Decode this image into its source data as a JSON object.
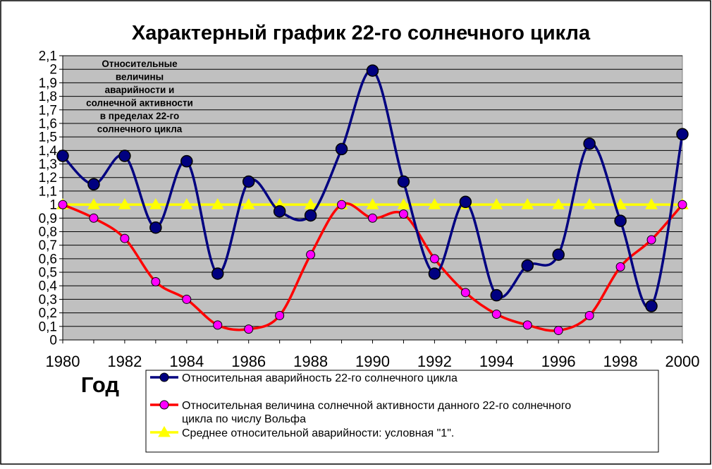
{
  "chart_data": {
    "type": "line",
    "title": "Характерный  график 22-го  солнечного  цикла",
    "xlabel": "Год",
    "ylabel": "",
    "annotation": [
      "Относительные",
      "величины",
      "аварийности и",
      "солнечной активности",
      "в пределах 22-го",
      "солнечного цикла"
    ],
    "x": [
      1980,
      1981,
      1982,
      1983,
      1984,
      1985,
      1986,
      1987,
      1988,
      1989,
      1990,
      1991,
      1992,
      1993,
      1994,
      1995,
      1996,
      1997,
      1998,
      1999,
      2000
    ],
    "x_ticks": [
      "1980",
      "1982",
      "1984",
      "1986",
      "1988",
      "1990",
      "1992",
      "1994",
      "1996",
      "1998",
      "2000"
    ],
    "y_ticks": [
      "0",
      "0,1",
      "0,2",
      "0,3",
      "0,4",
      "0,5",
      "0,6",
      "0,7",
      "0,8",
      "0,9",
      "1",
      "1,1",
      "1,2",
      "1,3",
      "1,4",
      "1,5",
      "1,6",
      "1,7",
      "1,8",
      "1,9",
      "2",
      "2,1"
    ],
    "xlim": [
      1980,
      2000
    ],
    "ylim": [
      0,
      2.1
    ],
    "grid": true,
    "plot_background": "#c0c0c0",
    "legend_position": "bottom",
    "series": [
      {
        "name": "Относительная  аварийность 22-го  солнечного цикла",
        "color": "#000080",
        "marker": "circle",
        "marker_fill": "#000080",
        "values": [
          1.36,
          1.15,
          1.36,
          0.83,
          1.32,
          0.49,
          1.17,
          0.95,
          0.92,
          1.41,
          1.99,
          1.17,
          0.49,
          1.02,
          0.33,
          0.55,
          0.63,
          1.45,
          0.88,
          0.25,
          1.52
        ]
      },
      {
        "name": "Относительная  величина  солнечной активности  данного 22-го солнечного цикла  по  числу  Вольфа",
        "color": "#ff0000",
        "marker": "circle",
        "marker_fill": "#ff00ff",
        "values": [
          1.0,
          0.9,
          0.75,
          0.43,
          0.3,
          0.11,
          0.08,
          0.18,
          0.63,
          1.0,
          0.9,
          0.93,
          0.6,
          0.35,
          0.19,
          0.11,
          0.07,
          0.18,
          0.54,
          0.74,
          1.0
        ]
      },
      {
        "name": "Среднее относительной  аварийности:  условная  \"1\".",
        "color": "#ffff00",
        "marker": "triangle",
        "marker_fill": "#ffff00",
        "values": [
          1,
          1,
          1,
          1,
          1,
          1,
          1,
          1,
          1,
          1,
          1,
          1,
          1,
          1,
          1,
          1,
          1,
          1,
          1,
          1,
          1
        ]
      }
    ]
  }
}
